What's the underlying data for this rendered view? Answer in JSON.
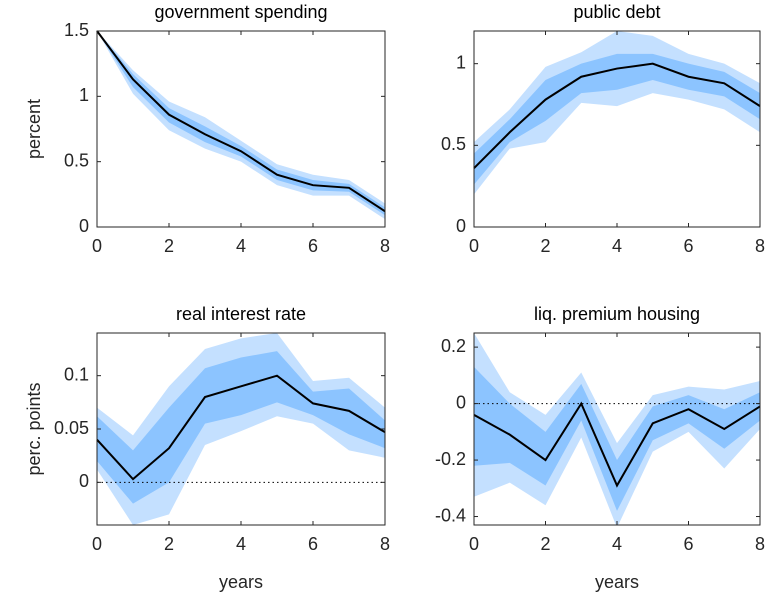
{
  "chart_data": [
    {
      "type": "band-line",
      "title": "government spending",
      "ylabel": "percent",
      "x": [
        0,
        1,
        2,
        3,
        4,
        5,
        6,
        7,
        8
      ],
      "values": [
        1.5,
        1.13,
        0.86,
        0.71,
        0.58,
        0.4,
        0.32,
        0.3,
        0.12
      ],
      "color": "#000000",
      "bands": [
        {
          "upper": [
            1.5,
            1.2,
            0.96,
            0.84,
            0.66,
            0.48,
            0.4,
            0.36,
            0.18
          ],
          "lower": [
            1.5,
            1.02,
            0.74,
            0.6,
            0.5,
            0.32,
            0.24,
            0.24,
            0.06
          ],
          "color": "#c4e0ff"
        },
        {
          "upper": [
            1.5,
            1.17,
            0.91,
            0.77,
            0.62,
            0.44,
            0.36,
            0.33,
            0.15
          ],
          "lower": [
            1.5,
            1.07,
            0.8,
            0.65,
            0.54,
            0.36,
            0.28,
            0.27,
            0.09
          ],
          "color": "#8cc4ff"
        }
      ],
      "xlim": [
        0,
        8
      ],
      "xticks": [
        0,
        2,
        4,
        6,
        8
      ],
      "ylim": [
        0,
        1.5
      ],
      "yticks": [
        0,
        0.5,
        1,
        1.5
      ]
    },
    {
      "type": "band-line",
      "title": "public debt",
      "x": [
        0,
        1,
        2,
        3,
        4,
        5,
        6,
        7,
        8
      ],
      "values": [
        0.36,
        0.58,
        0.78,
        0.92,
        0.97,
        1.0,
        0.92,
        0.88,
        0.74
      ],
      "color": "#000000",
      "bands": [
        {
          "upper": [
            0.52,
            0.72,
            0.98,
            1.07,
            1.2,
            1.17,
            1.06,
            1.0,
            0.88
          ],
          "lower": [
            0.2,
            0.48,
            0.52,
            0.76,
            0.74,
            0.82,
            0.78,
            0.72,
            0.58
          ],
          "color": "#c4e0ff"
        },
        {
          "upper": [
            0.45,
            0.66,
            0.9,
            1.0,
            1.06,
            1.06,
            1.0,
            0.95,
            0.82
          ],
          "lower": [
            0.26,
            0.52,
            0.65,
            0.82,
            0.84,
            0.9,
            0.84,
            0.8,
            0.66
          ],
          "color": "#8cc4ff"
        }
      ],
      "xlim": [
        0,
        8
      ],
      "xticks": [
        0,
        2,
        4,
        6,
        8
      ],
      "ylim": [
        0,
        1.2
      ],
      "yticks": [
        0,
        0.5,
        1
      ]
    },
    {
      "type": "band-line",
      "title": "real interest rate",
      "ylabel": "perc. points",
      "xlabel": "years",
      "x": [
        0,
        1,
        2,
        3,
        4,
        5,
        6,
        7,
        8
      ],
      "values": [
        0.04,
        0.003,
        0.032,
        0.08,
        0.09,
        0.1,
        0.074,
        0.067,
        0.047
      ],
      "color": "#000000",
      "bands": [
        {
          "upper": [
            0.07,
            0.044,
            0.09,
            0.125,
            0.135,
            0.14,
            0.095,
            0.098,
            0.07
          ],
          "lower": [
            0.012,
            -0.04,
            -0.03,
            0.035,
            0.048,
            0.062,
            0.055,
            0.03,
            0.023
          ],
          "color": "#c4e0ff"
        },
        {
          "upper": [
            0.062,
            0.03,
            0.07,
            0.107,
            0.117,
            0.123,
            0.085,
            0.088,
            0.058
          ],
          "lower": [
            0.02,
            -0.02,
            0.0,
            0.055,
            0.063,
            0.075,
            0.063,
            0.045,
            0.032
          ],
          "color": "#8cc4ff"
        }
      ],
      "hline": 0,
      "xlim": [
        0,
        8
      ],
      "xticks": [
        0,
        2,
        4,
        6,
        8
      ],
      "ylim": [
        -0.04,
        0.14
      ],
      "yticks": [
        0,
        0.05,
        0.1
      ]
    },
    {
      "type": "band-line",
      "title": "liq. premium housing",
      "xlabel": "years",
      "x": [
        0,
        1,
        2,
        3,
        4,
        5,
        6,
        7,
        8
      ],
      "values": [
        -0.04,
        -0.11,
        -0.2,
        0.0,
        -0.29,
        -0.07,
        -0.02,
        -0.09,
        -0.01
      ],
      "color": "#000000",
      "bands": [
        {
          "upper": [
            0.25,
            0.04,
            -0.04,
            0.11,
            -0.14,
            0.03,
            0.06,
            0.05,
            0.08
          ],
          "lower": [
            -0.33,
            -0.28,
            -0.36,
            -0.12,
            -0.44,
            -0.17,
            -0.1,
            -0.23,
            -0.09
          ],
          "color": "#c4e0ff"
        },
        {
          "upper": [
            0.13,
            0.0,
            -0.1,
            0.07,
            -0.2,
            -0.01,
            0.03,
            -0.02,
            0.04
          ],
          "lower": [
            -0.22,
            -0.21,
            -0.29,
            -0.06,
            -0.38,
            -0.13,
            -0.07,
            -0.16,
            -0.06
          ],
          "color": "#8cc4ff"
        }
      ],
      "hline": 0,
      "xlim": [
        0,
        8
      ],
      "xticks": [
        0,
        2,
        4,
        6,
        8
      ],
      "ylim": [
        -0.43,
        0.25
      ],
      "yticks": [
        -0.4,
        -0.2,
        0,
        0.2
      ]
    }
  ]
}
